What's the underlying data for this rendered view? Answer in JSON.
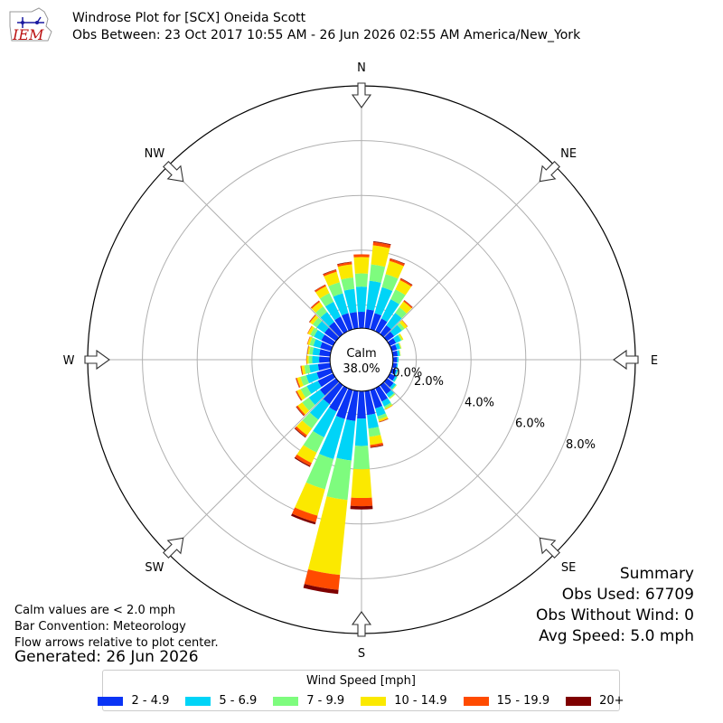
{
  "header": {
    "logo_text": "IEM",
    "title": "Windrose Plot for [SCX] Oneida Scott",
    "subtitle": "Obs Between: 23 Oct 2017 10:55 AM - 26 Jun 2026 02:55 AM America/New_York"
  },
  "notes": {
    "calm_note": "Calm values are < 2.0 mph",
    "bar_convention": "Bar Convention: Meteorology",
    "flow_note": "Flow arrows relative to plot center.",
    "generated": "Generated: 26 Jun 2026"
  },
  "summary": {
    "title": "Summary",
    "obs_used": "Obs Used: 67709",
    "obs_without_wind": "Obs Without Wind: 0",
    "avg_speed": "Avg Speed: 5.0 mph"
  },
  "chart_data": {
    "type": "windrose",
    "calm_label": "Calm",
    "calm_percent": "38.0%",
    "radial_ticks": [
      "0.0%",
      "2.0%",
      "4.0%",
      "6.0%",
      "8.0%"
    ],
    "radial_tick_values": [
      0,
      2,
      4,
      6,
      8
    ],
    "radial_max": 10,
    "calm_radius_percent": 1.15,
    "compass_labels": [
      "N",
      "NE",
      "E",
      "SE",
      "S",
      "SW",
      "W",
      "NW"
    ],
    "legend_title": "Wind Speed [mph]",
    "bins": [
      {
        "label": "2 - 4.9",
        "color": "#0a34f5"
      },
      {
        "label": "5 - 6.9",
        "color": "#00d4f7"
      },
      {
        "label": "7 - 9.9",
        "color": "#7efc7e"
      },
      {
        "label": "10 - 14.9",
        "color": "#fbe900"
      },
      {
        "label": "15 - 19.9",
        "color": "#ff4b00"
      },
      {
        "label": "20+",
        "color": "#7f0000"
      }
    ],
    "directions_deg": [
      0,
      10,
      20,
      30,
      40,
      50,
      60,
      70,
      80,
      90,
      100,
      110,
      120,
      130,
      140,
      150,
      160,
      170,
      180,
      190,
      200,
      210,
      220,
      230,
      240,
      250,
      260,
      270,
      280,
      290,
      300,
      310,
      320,
      330,
      340,
      350
    ],
    "frequencies_percent": [
      [
        0.6,
        0.92,
        0.48,
        0.6,
        0.1,
        0.0
      ],
      [
        0.7,
        1.05,
        0.6,
        0.7,
        0.12,
        0.03
      ],
      [
        0.62,
        0.98,
        0.5,
        0.5,
        0.08,
        0.02
      ],
      [
        0.52,
        0.78,
        0.4,
        0.38,
        0.06,
        0.02
      ],
      [
        0.4,
        0.56,
        0.25,
        0.26,
        0.05,
        0.01
      ],
      [
        0.32,
        0.35,
        0.12,
        0.12,
        0.02,
        0.0
      ],
      [
        0.25,
        0.2,
        0.05,
        0.05,
        0.0,
        0.0
      ],
      [
        0.2,
        0.12,
        0.03,
        0.02,
        0.0,
        0.0
      ],
      [
        0.18,
        0.08,
        0.02,
        0.01,
        0.0,
        0.0
      ],
      [
        0.15,
        0.05,
        0.01,
        0.0,
        0.0,
        0.0
      ],
      [
        0.15,
        0.04,
        0.0,
        0.0,
        0.0,
        0.0
      ],
      [
        0.18,
        0.05,
        0.01,
        0.0,
        0.0,
        0.0
      ],
      [
        0.22,
        0.07,
        0.02,
        0.0,
        0.0,
        0.0
      ],
      [
        0.3,
        0.1,
        0.03,
        0.01,
        0.0,
        0.0
      ],
      [
        0.4,
        0.15,
        0.05,
        0.02,
        0.0,
        0.0
      ],
      [
        0.55,
        0.2,
        0.08,
        0.04,
        0.01,
        0.0
      ],
      [
        0.7,
        0.3,
        0.12,
        0.08,
        0.02,
        0.01
      ],
      [
        0.88,
        0.5,
        0.3,
        0.3,
        0.08,
        0.03
      ],
      [
        1.0,
        1.0,
        0.85,
        1.05,
        0.3,
        0.12
      ],
      [
        1.1,
        1.45,
        1.45,
        2.75,
        0.55,
        0.15
      ],
      [
        1.1,
        1.52,
        1.15,
        1.0,
        0.25,
        0.08
      ],
      [
        0.95,
        1.05,
        0.62,
        0.42,
        0.12,
        0.04
      ],
      [
        0.85,
        0.7,
        0.4,
        0.3,
        0.08,
        0.03
      ],
      [
        0.72,
        0.5,
        0.3,
        0.2,
        0.06,
        0.02
      ],
      [
        0.62,
        0.45,
        0.25,
        0.15,
        0.04,
        0.01
      ],
      [
        0.55,
        0.4,
        0.22,
        0.13,
        0.04,
        0.01
      ],
      [
        0.45,
        0.32,
        0.18,
        0.1,
        0.03,
        0.01
      ],
      [
        0.4,
        0.25,
        0.13,
        0.07,
        0.02,
        0.0
      ],
      [
        0.4,
        0.25,
        0.12,
        0.06,
        0.02,
        0.0
      ],
      [
        0.42,
        0.26,
        0.14,
        0.08,
        0.02,
        0.0
      ],
      [
        0.48,
        0.3,
        0.15,
        0.1,
        0.02,
        0.0
      ],
      [
        0.52,
        0.35,
        0.18,
        0.12,
        0.03,
        0.01
      ],
      [
        0.55,
        0.45,
        0.25,
        0.2,
        0.05,
        0.01
      ],
      [
        0.6,
        0.6,
        0.35,
        0.28,
        0.06,
        0.01
      ],
      [
        0.62,
        0.75,
        0.42,
        0.4,
        0.07,
        0.02
      ],
      [
        0.6,
        0.85,
        0.42,
        0.48,
        0.08,
        0.02
      ]
    ]
  }
}
